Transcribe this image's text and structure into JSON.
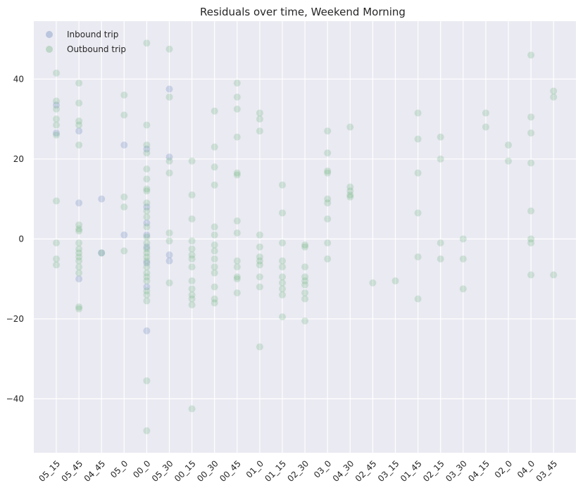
{
  "chart_data": {
    "type": "scatter",
    "title": "Residuals over time, Weekend Morning",
    "xlabel": "",
    "ylabel": "",
    "categories": [
      "05_15",
      "05_45",
      "04_45",
      "05_0",
      "00_0",
      "05_30",
      "00_15",
      "00_30",
      "00_45",
      "01_0",
      "01_15",
      "02_30",
      "03_0",
      "04_30",
      "02_45",
      "03_15",
      "01_45",
      "02_15",
      "03_30",
      "04_15",
      "02_0",
      "04_0",
      "03_45"
    ],
    "ylim": [
      -53.5,
      54.5
    ],
    "yticks": [
      -40,
      -20,
      0,
      20,
      40
    ],
    "grid": true,
    "legend_position": "top-left",
    "colors": {
      "inbound": "#4c72b0",
      "outbound": "#55a868",
      "background": "#eaeaf2",
      "grid": "#ffffff"
    },
    "series": [
      {
        "name": "Inbound trip",
        "color": "#4c72b0",
        "points": [
          [
            "05_15",
            33.5
          ],
          [
            "05_15",
            26.5
          ],
          [
            "05_45",
            27
          ],
          [
            "05_45",
            9
          ],
          [
            "05_45",
            -10
          ],
          [
            "04_45",
            10
          ],
          [
            "04_45",
            -3.5
          ],
          [
            "05_0",
            23.5
          ],
          [
            "05_0",
            1
          ],
          [
            "00_0",
            22.5
          ],
          [
            "00_0",
            8
          ],
          [
            "00_0",
            4
          ],
          [
            "00_0",
            1
          ],
          [
            "00_0",
            -2
          ],
          [
            "00_0",
            -6
          ],
          [
            "00_0",
            -12
          ],
          [
            "00_0",
            -23
          ],
          [
            "05_30",
            37.5
          ],
          [
            "05_30",
            20.5
          ],
          [
            "05_30",
            -4
          ],
          [
            "05_30",
            -5.5
          ]
        ]
      },
      {
        "name": "Outbound trip",
        "color": "#55a868",
        "points": [
          [
            "05_15",
            41.5
          ],
          [
            "05_15",
            34.5
          ],
          [
            "05_15",
            32.5
          ],
          [
            "05_15",
            30
          ],
          [
            "05_15",
            28.5
          ],
          [
            "05_15",
            26
          ],
          [
            "05_15",
            9.5
          ],
          [
            "05_15",
            -1
          ],
          [
            "05_15",
            -5
          ],
          [
            "05_15",
            -6.5
          ],
          [
            "05_45",
            39
          ],
          [
            "05_45",
            34
          ],
          [
            "05_45",
            29.5
          ],
          [
            "05_45",
            28.5
          ],
          [
            "05_45",
            23.5
          ],
          [
            "05_45",
            3.5
          ],
          [
            "05_45",
            2.5
          ],
          [
            "05_45",
            2
          ],
          [
            "05_45",
            -1
          ],
          [
            "05_45",
            -2.5
          ],
          [
            "05_45",
            -3.5
          ],
          [
            "05_45",
            -4.5
          ],
          [
            "05_45",
            -5.5
          ],
          [
            "05_45",
            -7
          ],
          [
            "05_45",
            -8.5
          ],
          [
            "05_45",
            -17
          ],
          [
            "05_45",
            -17.5
          ],
          [
            "04_45",
            -3.5
          ],
          [
            "05_0",
            36
          ],
          [
            "05_0",
            31
          ],
          [
            "05_0",
            10.5
          ],
          [
            "05_0",
            8
          ],
          [
            "05_0",
            -3
          ],
          [
            "00_0",
            49
          ],
          [
            "00_0",
            28.5
          ],
          [
            "00_0",
            23.5
          ],
          [
            "00_0",
            21.5
          ],
          [
            "00_0",
            17.5
          ],
          [
            "00_0",
            15
          ],
          [
            "00_0",
            12.5
          ],
          [
            "00_0",
            12
          ],
          [
            "00_0",
            9
          ],
          [
            "00_0",
            7
          ],
          [
            "00_0",
            5.5
          ],
          [
            "00_0",
            3
          ],
          [
            "00_0",
            0.5
          ],
          [
            "00_0",
            -1
          ],
          [
            "00_0",
            -2.5
          ],
          [
            "00_0",
            -3.5
          ],
          [
            "00_0",
            -4.5
          ],
          [
            "00_0",
            -5.5
          ],
          [
            "00_0",
            -7
          ],
          [
            "00_0",
            -8.5
          ],
          [
            "00_0",
            -9.5
          ],
          [
            "00_0",
            -10.5
          ],
          [
            "00_0",
            -13
          ],
          [
            "00_0",
            -14
          ],
          [
            "00_0",
            -15.5
          ],
          [
            "00_0",
            -35.5
          ],
          [
            "00_0",
            -48
          ],
          [
            "05_30",
            47.5
          ],
          [
            "05_30",
            35.5
          ],
          [
            "05_30",
            19.5
          ],
          [
            "05_30",
            16.5
          ],
          [
            "05_30",
            1.5
          ],
          [
            "05_30",
            -0.5
          ],
          [
            "05_30",
            -11
          ],
          [
            "00_15",
            19.5
          ],
          [
            "00_15",
            11
          ],
          [
            "00_15",
            5
          ],
          [
            "00_15",
            -0.5
          ],
          [
            "00_15",
            -2.5
          ],
          [
            "00_15",
            -4
          ],
          [
            "00_15",
            -5
          ],
          [
            "00_15",
            -7
          ],
          [
            "00_15",
            -10.5
          ],
          [
            "00_15",
            -12.5
          ],
          [
            "00_15",
            -14
          ],
          [
            "00_15",
            -15
          ],
          [
            "00_15",
            -16.5
          ],
          [
            "00_15",
            -42.5
          ],
          [
            "00_30",
            32
          ],
          [
            "00_30",
            23
          ],
          [
            "00_30",
            18
          ],
          [
            "00_30",
            13.5
          ],
          [
            "00_30",
            3
          ],
          [
            "00_30",
            1
          ],
          [
            "00_30",
            -1.5
          ],
          [
            "00_30",
            -3
          ],
          [
            "00_30",
            -5
          ],
          [
            "00_30",
            -7
          ],
          [
            "00_30",
            -8.5
          ],
          [
            "00_30",
            -12
          ],
          [
            "00_30",
            -15
          ],
          [
            "00_30",
            -16
          ],
          [
            "00_45",
            39
          ],
          [
            "00_45",
            35.5
          ],
          [
            "00_45",
            32.5
          ],
          [
            "00_45",
            25.5
          ],
          [
            "00_45",
            16.5
          ],
          [
            "00_45",
            16
          ],
          [
            "00_45",
            4.5
          ],
          [
            "00_45",
            1.5
          ],
          [
            "00_45",
            -5.5
          ],
          [
            "00_45",
            -7
          ],
          [
            "00_45",
            -9.5
          ],
          [
            "00_45",
            -10
          ],
          [
            "00_45",
            -13.5
          ],
          [
            "01_0",
            31.5
          ],
          [
            "01_0",
            30
          ],
          [
            "01_0",
            27
          ],
          [
            "01_0",
            1
          ],
          [
            "01_0",
            -2
          ],
          [
            "01_0",
            -4.5
          ],
          [
            "01_0",
            -5.5
          ],
          [
            "01_0",
            -6.5
          ],
          [
            "01_0",
            -9.5
          ],
          [
            "01_0",
            -12
          ],
          [
            "01_0",
            -27
          ],
          [
            "01_15",
            13.5
          ],
          [
            "01_15",
            6.5
          ],
          [
            "01_15",
            -1
          ],
          [
            "01_15",
            -5.5
          ],
          [
            "01_15",
            -7
          ],
          [
            "01_15",
            -9.5
          ],
          [
            "01_15",
            -11
          ],
          [
            "01_15",
            -12.5
          ],
          [
            "01_15",
            -14
          ],
          [
            "01_15",
            -19.5
          ],
          [
            "02_30",
            -1.5
          ],
          [
            "02_30",
            -2
          ],
          [
            "02_30",
            -7
          ],
          [
            "02_30",
            -9.5
          ],
          [
            "02_30",
            -10.5
          ],
          [
            "02_30",
            -11.5
          ],
          [
            "02_30",
            -13.5
          ],
          [
            "02_30",
            -15
          ],
          [
            "02_30",
            -20.5
          ],
          [
            "03_0",
            27
          ],
          [
            "03_0",
            21.5
          ],
          [
            "03_0",
            17
          ],
          [
            "03_0",
            16.5
          ],
          [
            "03_0",
            10
          ],
          [
            "03_0",
            9
          ],
          [
            "03_0",
            5
          ],
          [
            "03_0",
            -1
          ],
          [
            "03_0",
            -5
          ],
          [
            "04_30",
            28
          ],
          [
            "04_30",
            13
          ],
          [
            "04_30",
            12
          ],
          [
            "04_30",
            11
          ],
          [
            "04_30",
            10.5
          ],
          [
            "02_45",
            -11
          ],
          [
            "03_15",
            -10.5
          ],
          [
            "01_45",
            31.5
          ],
          [
            "01_45",
            25
          ],
          [
            "01_45",
            16.5
          ],
          [
            "01_45",
            6.5
          ],
          [
            "01_45",
            -4.5
          ],
          [
            "01_45",
            -15
          ],
          [
            "02_15",
            25.5
          ],
          [
            "02_15",
            20
          ],
          [
            "02_15",
            -1
          ],
          [
            "02_15",
            -5
          ],
          [
            "03_30",
            0
          ],
          [
            "03_30",
            -5
          ],
          [
            "03_30",
            -12.5
          ],
          [
            "04_15",
            31.5
          ],
          [
            "04_15",
            28
          ],
          [
            "02_0",
            23.5
          ],
          [
            "02_0",
            19.5
          ],
          [
            "04_0",
            46
          ],
          [
            "04_0",
            30.5
          ],
          [
            "04_0",
            26.5
          ],
          [
            "04_0",
            19
          ],
          [
            "04_0",
            7
          ],
          [
            "04_0",
            0
          ],
          [
            "04_0",
            -1
          ],
          [
            "04_0",
            -9
          ],
          [
            "03_45",
            37
          ],
          [
            "03_45",
            35.5
          ],
          [
            "03_45",
            -9
          ]
        ]
      }
    ]
  }
}
